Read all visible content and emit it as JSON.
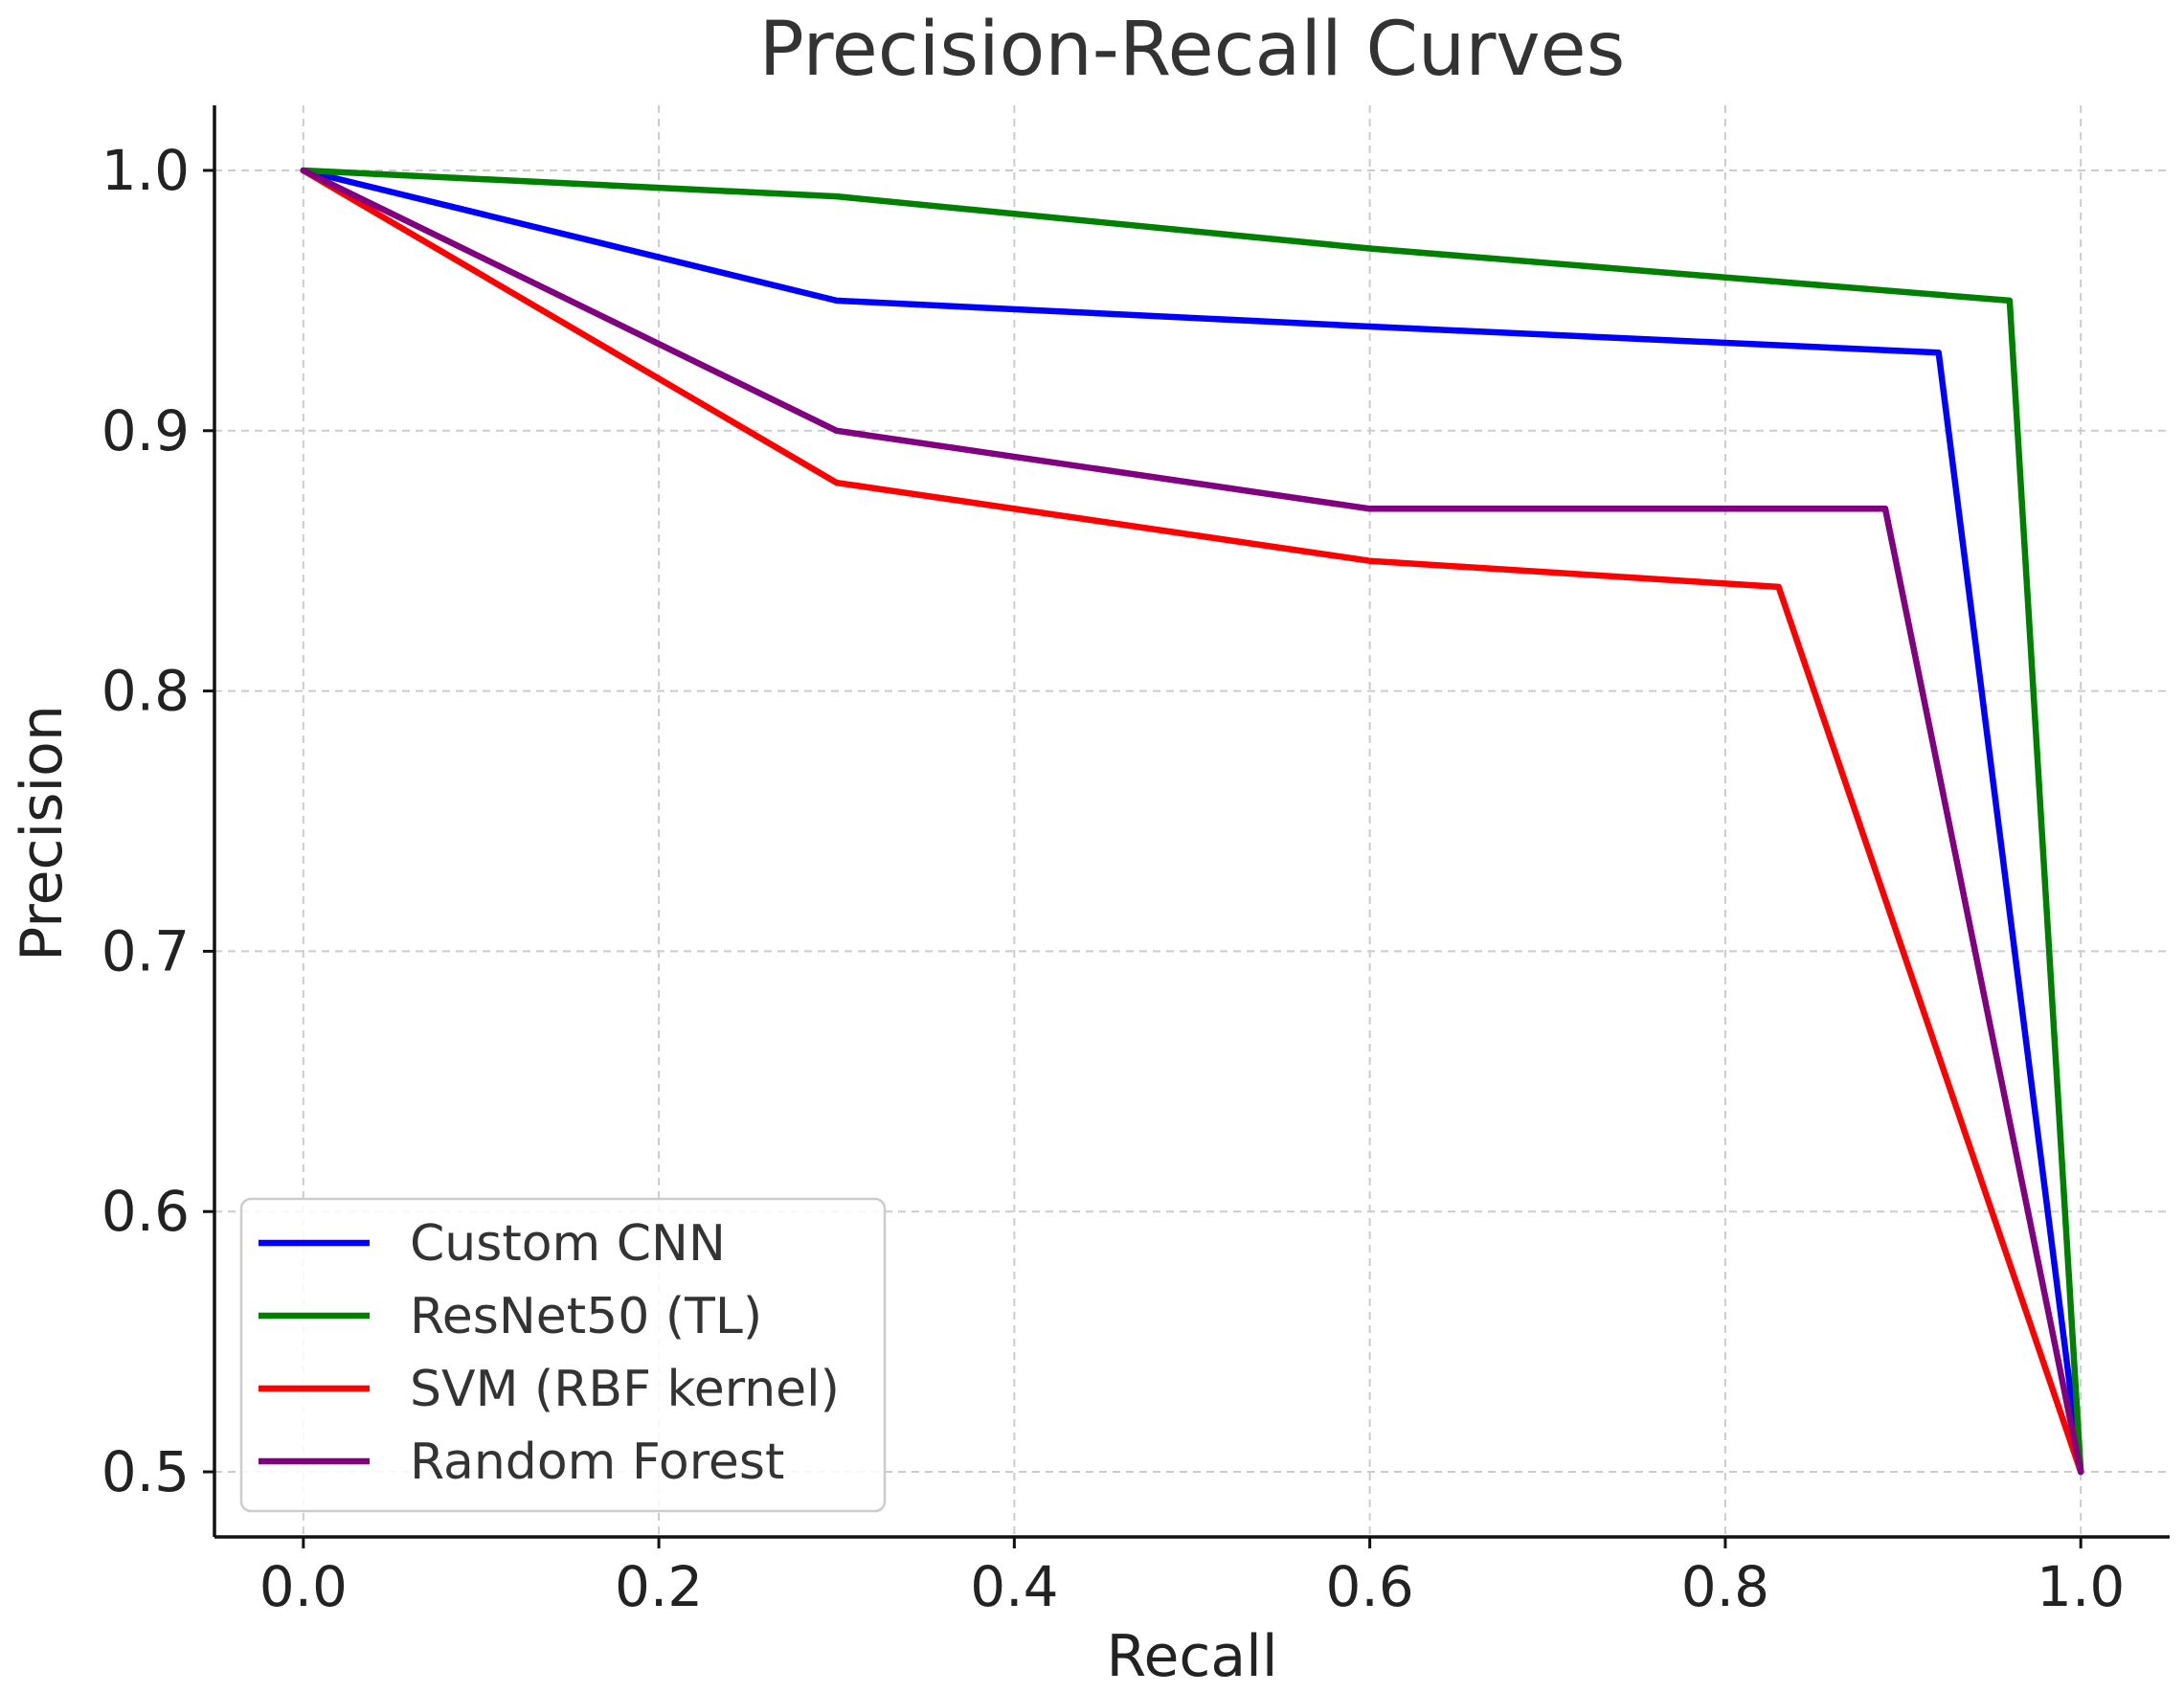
{
  "chart_data": {
    "type": "line",
    "title": "Precision-Recall Curves",
    "xlabel": "Recall",
    "ylabel": "Precision",
    "xlim": [
      -0.05,
      1.05
    ],
    "ylim": [
      0.475,
      1.025
    ],
    "xticks": [
      0.0,
      0.2,
      0.4,
      0.6,
      0.8,
      1.0
    ],
    "xtick_labels": [
      "0.0",
      "0.2",
      "0.4",
      "0.6",
      "0.8",
      "1.0"
    ],
    "yticks": [
      0.5,
      0.6,
      0.7,
      0.8,
      0.9,
      1.0
    ],
    "ytick_labels": [
      "0.5",
      "0.6",
      "0.7",
      "0.8",
      "0.9",
      "1.0"
    ],
    "grid": true,
    "legend_position": "lower-left",
    "series": [
      {
        "name": "Custom CNN",
        "color": "#0000ff",
        "x": [
          0.0,
          0.3,
          0.6,
          0.92,
          1.0
        ],
        "y": [
          1.0,
          0.95,
          0.94,
          0.93,
          0.5
        ]
      },
      {
        "name": "ResNet50 (TL)",
        "color": "#008000",
        "x": [
          0.0,
          0.3,
          0.6,
          0.96,
          1.0
        ],
        "y": [
          1.0,
          0.99,
          0.97,
          0.95,
          0.5
        ]
      },
      {
        "name": "SVM (RBF kernel)",
        "color": "#ff0000",
        "x": [
          0.0,
          0.3,
          0.6,
          0.83,
          1.0
        ],
        "y": [
          1.0,
          0.88,
          0.85,
          0.84,
          0.5
        ]
      },
      {
        "name": "Random Forest",
        "color": "#800080",
        "x": [
          0.0,
          0.3,
          0.6,
          0.89,
          1.0
        ],
        "y": [
          1.0,
          0.9,
          0.87,
          0.87,
          0.5
        ]
      }
    ]
  }
}
